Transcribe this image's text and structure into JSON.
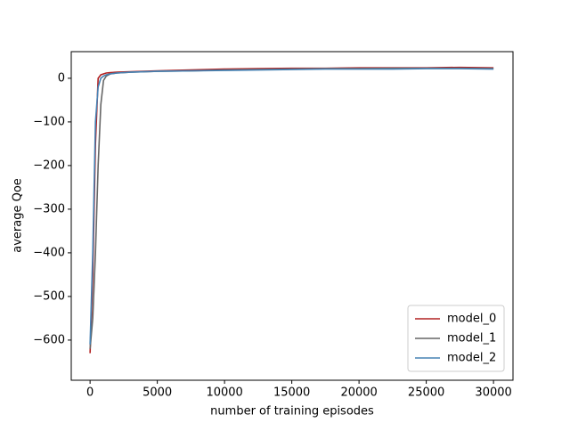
{
  "chart_data": {
    "type": "line",
    "xlabel": "number of training episodes",
    "ylabel": "average Qoe",
    "x": [
      0,
      200,
      400,
      600,
      800,
      1000,
      1200,
      1500,
      2000,
      3000,
      5000,
      7500,
      10000,
      12500,
      15000,
      17500,
      20000,
      22500,
      25000,
      27500,
      30000
    ],
    "series": [
      {
        "name": "model_0",
        "color": "#b22222",
        "values": [
          -630,
          -450,
          -150,
          0,
          8,
          10,
          12,
          13,
          14,
          15,
          17,
          19,
          21,
          22,
          23,
          23,
          24,
          24,
          24,
          25,
          24
        ]
      },
      {
        "name": "model_1",
        "color": "#666666",
        "values": [
          -620,
          -550,
          -400,
          -200,
          -60,
          -5,
          5,
          10,
          12,
          14,
          16,
          17,
          19,
          20,
          21,
          22,
          22,
          23,
          23,
          23,
          22
        ]
      },
      {
        "name": "model_2",
        "color": "#4682b4",
        "values": [
          -610,
          -400,
          -100,
          -20,
          0,
          5,
          8,
          10,
          12,
          14,
          16,
          17,
          18,
          19,
          20,
          21,
          21,
          21,
          22,
          22,
          21
        ]
      }
    ],
    "xlim": [
      -1400,
      31450
    ],
    "ylim": [
      -692,
      61
    ],
    "xticks": [
      0,
      5000,
      10000,
      15000,
      20000,
      25000,
      30000
    ],
    "yticks": [
      {
        "value": -600,
        "label": "−600"
      },
      {
        "value": -500,
        "label": "−500"
      },
      {
        "value": -400,
        "label": "−400"
      },
      {
        "value": -300,
        "label": "−300"
      },
      {
        "value": -200,
        "label": "−200"
      },
      {
        "value": -100,
        "label": "−100"
      },
      0
    ],
    "legend": "lower right"
  }
}
